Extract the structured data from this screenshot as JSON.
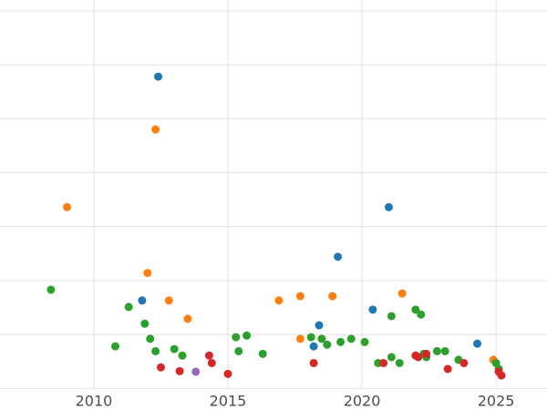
{
  "chart_data": {
    "type": "scatter",
    "title": "",
    "xlabel": "",
    "ylabel": "",
    "grid": true,
    "legend_position": "none",
    "background_color": "#ffffff",
    "gridline_color": "#e0e0e0",
    "tick_label_color": "#4d4d4d",
    "marker_radius_px": 4.5,
    "xlim": [
      2006.5,
      2026.9
    ],
    "ylim": [
      -0.4,
      7.2
    ],
    "x_ticks": [
      2010,
      2015,
      2020,
      2025
    ],
    "x_tick_labels": [
      "2010",
      "2015",
      "2020",
      "2025"
    ],
    "y_gridlines": [
      0,
      1,
      2,
      3,
      4,
      5,
      6,
      7
    ],
    "series": [
      {
        "name": "series-blue",
        "color": "#1f77b4",
        "points": [
          [
            2012.4,
            5.78
          ],
          [
            2021.0,
            3.36
          ],
          [
            2019.1,
            2.44
          ],
          [
            2011.8,
            1.63
          ],
          [
            2020.4,
            1.46
          ],
          [
            2018.4,
            1.17
          ],
          [
            2018.2,
            0.78
          ],
          [
            2024.3,
            0.83
          ]
        ]
      },
      {
        "name": "series-orange",
        "color": "#ff7f0e",
        "points": [
          [
            2012.3,
            4.8
          ],
          [
            2009.0,
            3.36
          ],
          [
            2012.0,
            2.14
          ],
          [
            2012.8,
            1.63
          ],
          [
            2013.5,
            1.29
          ],
          [
            2016.9,
            1.63
          ],
          [
            2017.7,
            1.71
          ],
          [
            2018.9,
            1.71
          ],
          [
            2017.7,
            0.92
          ],
          [
            2021.5,
            1.76
          ],
          [
            2024.9,
            0.53
          ]
        ]
      },
      {
        "name": "series-green",
        "color": "#2ca02c",
        "points": [
          [
            2008.4,
            1.83
          ],
          [
            2010.8,
            0.78
          ],
          [
            2011.3,
            1.51
          ],
          [
            2011.9,
            1.2
          ],
          [
            2012.1,
            0.92
          ],
          [
            2012.3,
            0.69
          ],
          [
            2013.0,
            0.73
          ],
          [
            2013.3,
            0.61
          ],
          [
            2015.3,
            0.95
          ],
          [
            2015.7,
            0.98
          ],
          [
            2015.4,
            0.69
          ],
          [
            2016.3,
            0.64
          ],
          [
            2018.1,
            0.95
          ],
          [
            2018.5,
            0.92
          ],
          [
            2018.7,
            0.81
          ],
          [
            2019.2,
            0.86
          ],
          [
            2019.6,
            0.92
          ],
          [
            2020.1,
            0.86
          ],
          [
            2020.6,
            0.47
          ],
          [
            2021.1,
            0.58
          ],
          [
            2021.1,
            1.34
          ],
          [
            2021.4,
            0.47
          ],
          [
            2022.0,
            1.46
          ],
          [
            2022.2,
            1.37
          ],
          [
            2022.3,
            0.64
          ],
          [
            2022.4,
            0.58
          ],
          [
            2022.8,
            0.69
          ],
          [
            2023.1,
            0.69
          ],
          [
            2023.6,
            0.53
          ],
          [
            2025.0,
            0.47
          ],
          [
            2025.1,
            0.36
          ]
        ]
      },
      {
        "name": "series-red",
        "color": "#d62728",
        "points": [
          [
            2012.5,
            0.39
          ],
          [
            2013.2,
            0.32
          ],
          [
            2014.3,
            0.61
          ],
          [
            2014.4,
            0.47
          ],
          [
            2015.0,
            0.27
          ],
          [
            2018.2,
            0.47
          ],
          [
            2020.8,
            0.47
          ],
          [
            2022.0,
            0.61
          ],
          [
            2022.1,
            0.58
          ],
          [
            2022.4,
            0.64
          ],
          [
            2023.2,
            0.36
          ],
          [
            2023.8,
            0.47
          ],
          [
            2025.1,
            0.31
          ],
          [
            2025.2,
            0.24
          ]
        ]
      },
      {
        "name": "series-purple",
        "color": "#9467bd",
        "points": [
          [
            2013.8,
            0.31
          ]
        ]
      }
    ]
  }
}
